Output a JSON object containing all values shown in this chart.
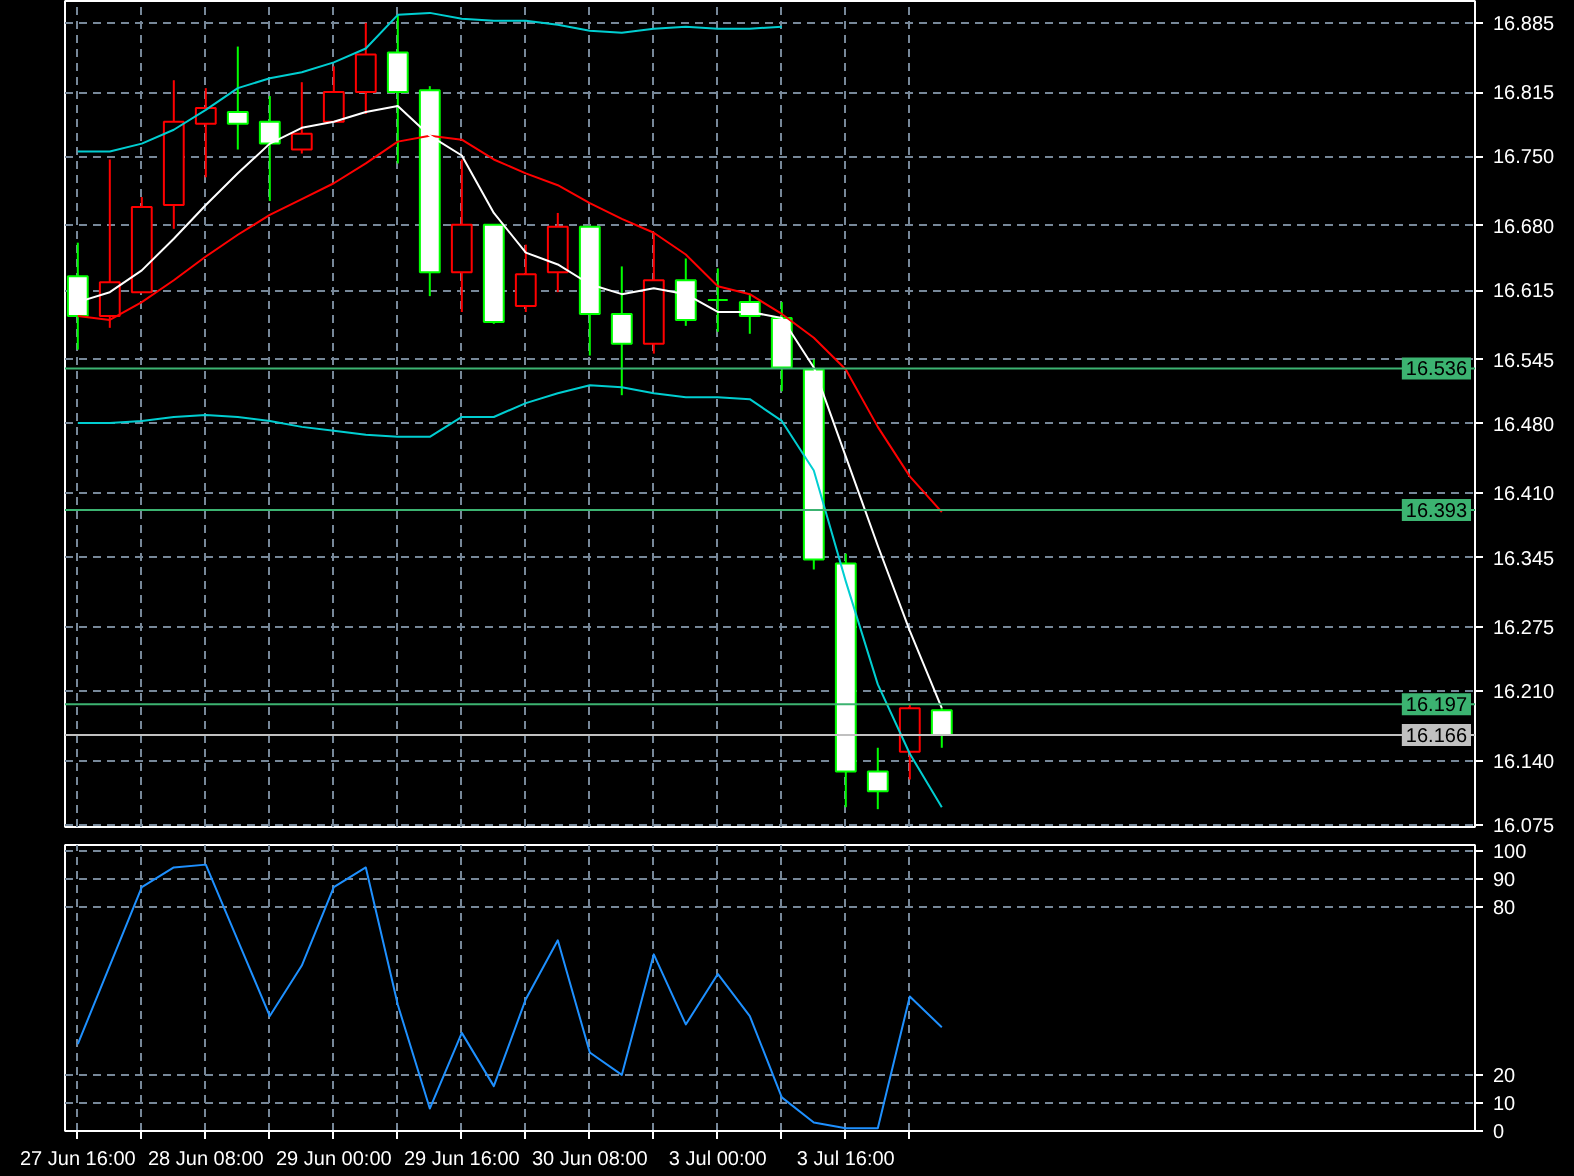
{
  "chart_data": [
    {
      "type": "candlestick",
      "tick_labels": "y",
      "grid": true,
      "categories": [
        null,
        null,
        null,
        null,
        null,
        null,
        null,
        null,
        null,
        null,
        null,
        null,
        null,
        null,
        null,
        null,
        null,
        null,
        null,
        null,
        null,
        null,
        null,
        null,
        null,
        null,
        null,
        null
      ],
      "ylim": [
        16.073,
        16.907
      ],
      "yticks": [
        16.885,
        16.815,
        {
          "value": 16.75,
          "label": "16.750"
        },
        {
          "value": 16.68,
          "label": "16.680"
        },
        16.615,
        16.545,
        {
          "value": 16.48,
          "label": "16.480"
        },
        {
          "value": 16.41,
          "label": "16.410"
        },
        16.345,
        16.275,
        {
          "value": 16.21,
          "label": "16.210"
        },
        {
          "value": 16.14,
          "label": "16.140"
        },
        16.075
      ],
      "ohlc": [
        [
          16.629,
          16.663,
          16.555,
          16.589
        ],
        [
          16.589,
          16.747,
          16.577,
          16.623
        ],
        [
          16.613,
          16.709,
          16.613,
          16.699
        ],
        [
          16.701,
          16.827,
          16.677,
          16.785
        ],
        [
          16.783,
          16.819,
          16.729,
          16.799
        ],
        [
          16.795,
          16.861,
          16.757,
          16.783
        ],
        [
          16.785,
          16.811,
          16.705,
          16.763
        ],
        [
          16.757,
          16.825,
          16.753,
          16.773
        ],
        [
          16.785,
          16.841,
          16.785,
          16.815
        ],
        [
          16.815,
          16.885,
          16.793,
          16.853
        ],
        [
          16.855,
          16.893,
          16.743,
          16.815
        ],
        [
          16.817,
          16.821,
          16.609,
          16.633
        ],
        [
          16.633,
          16.747,
          16.593,
          16.681
        ],
        [
          16.681,
          16.681,
          16.581,
          16.583
        ],
        [
          16.599,
          16.661,
          16.593,
          16.631
        ],
        [
          16.633,
          16.693,
          16.613,
          16.679
        ],
        [
          16.679,
          16.679,
          16.549,
          16.591
        ],
        [
          16.591,
          16.639,
          16.509,
          16.561
        ],
        [
          16.561,
          16.673,
          16.551,
          16.625
        ],
        [
          16.625,
          16.647,
          16.579,
          16.585
        ],
        [
          16.605,
          16.637,
          16.573,
          16.605
        ],
        [
          16.603,
          16.611,
          16.571,
          16.589
        ],
        [
          16.587,
          16.603,
          16.513,
          16.537
        ],
        [
          16.535,
          16.545,
          16.333,
          16.343
        ],
        [
          16.339,
          16.349,
          16.093,
          16.129
        ],
        [
          16.129,
          16.153,
          16.091,
          16.109
        ],
        [
          16.149,
          16.197,
          16.121,
          16.193
        ],
        [
          16.191,
          16.193,
          16.153,
          16.166
        ]
      ],
      "colors": [
        "#00ff00",
        "#ff0000",
        "#ff0000",
        "#ff0000",
        "#ff0000",
        "#00ff00",
        "#00ff00",
        "#ff0000",
        "#ff0000",
        "#ff0000",
        "#00ff00",
        "#00ff00",
        "#ff0000",
        "#00ff00",
        "#ff0000",
        "#ff0000",
        "#00ff00",
        "#00ff00",
        "#ff0000",
        "#00ff00",
        "#00ff00",
        "#00ff00",
        "#00ff00",
        "#00ff00",
        "#00ff00",
        "#00ff00",
        "#ff0000",
        "#00ff00"
      ],
      "series": [
        {
          "type": "line",
          "color": "#00ced1",
          "values": [
            16.755,
            16.755,
            16.763,
            16.777,
            16.797,
            16.819,
            16.829,
            16.835,
            16.845,
            16.859,
            16.893,
            16.895,
            16.889,
            16.887,
            16.887,
            16.883,
            16.877,
            16.875,
            16.879,
            16.881,
            16.879,
            16.879,
            16.881,
            null,
            null,
            null,
            null,
            null
          ]
        },
        {
          "type": "line",
          "color": "#00ced1",
          "values": [
            16.481,
            16.481,
            16.483,
            16.487,
            16.489,
            16.487,
            16.483,
            16.477,
            16.473,
            16.469,
            16.467,
            16.467,
            16.487,
            16.487,
            16.501,
            16.511,
            16.519,
            16.517,
            16.511,
            16.507,
            16.507,
            16.505,
            16.483,
            16.433,
            16.321,
            16.217,
            16.147,
            16.093
          ]
        },
        {
          "type": "line",
          "color": "#ff0000",
          "values": [
            16.589,
            16.585,
            16.603,
            16.625,
            16.649,
            16.671,
            16.691,
            16.707,
            16.723,
            16.743,
            16.765,
            16.771,
            16.767,
            16.747,
            16.733,
            16.721,
            16.703,
            16.687,
            16.673,
            16.651,
            16.619,
            16.611,
            16.591,
            16.567,
            16.535,
            16.477,
            16.427,
            16.391
          ]
        },
        {
          "type": "line",
          "color": "#ffffff",
          "values": [
            16.603,
            16.613,
            16.635,
            16.667,
            16.701,
            16.733,
            16.763,
            16.779,
            16.785,
            16.795,
            16.801,
            16.771,
            16.751,
            16.693,
            16.653,
            16.641,
            16.621,
            16.611,
            16.617,
            16.611,
            16.593,
            16.593,
            16.587,
            16.537,
            16.447,
            16.357,
            16.271,
            16.193
          ]
        }
      ],
      "ref_lines": [
        {
          "axis": "y",
          "value": 16.536,
          "label": "16.536",
          "color": "#3cb371"
        },
        {
          "axis": "y",
          "value": 16.393,
          "label": "16.393",
          "color": "#3cb371"
        },
        {
          "axis": "y",
          "value": 16.197,
          "label": "16.197",
          "color": "#3cb371"
        },
        {
          "axis": "y",
          "value": 16.166,
          "label": "16.166",
          "color": "#c0c0c0"
        }
      ]
    },
    {
      "type": "line",
      "grid": true,
      "categories": [
        "27 Jun 16:00",
        null,
        null,
        null,
        "28 Jun 08:00",
        null,
        null,
        null,
        "29 Jun 00:00",
        null,
        null,
        null,
        "29 Jun 16:00",
        null,
        null,
        null,
        "30 Jun 08:00",
        null,
        null,
        null,
        "3 Jul 00:00",
        null,
        null,
        null,
        "3 Jul 16:00",
        null,
        null,
        null
      ],
      "ylim": [
        0,
        102
      ],
      "yticks": [
        0,
        10,
        20,
        80,
        90,
        100
      ],
      "series": [
        {
          "type": "line",
          "color": "#1e90ff",
          "values": [
            31,
            59,
            87,
            94,
            95,
            68,
            41,
            59,
            87,
            94,
            45,
            8,
            35,
            16,
            47,
            68,
            28,
            20,
            63,
            38,
            56,
            41,
            12,
            3,
            1,
            1,
            48,
            37
          ]
        }
      ]
    }
  ]
}
